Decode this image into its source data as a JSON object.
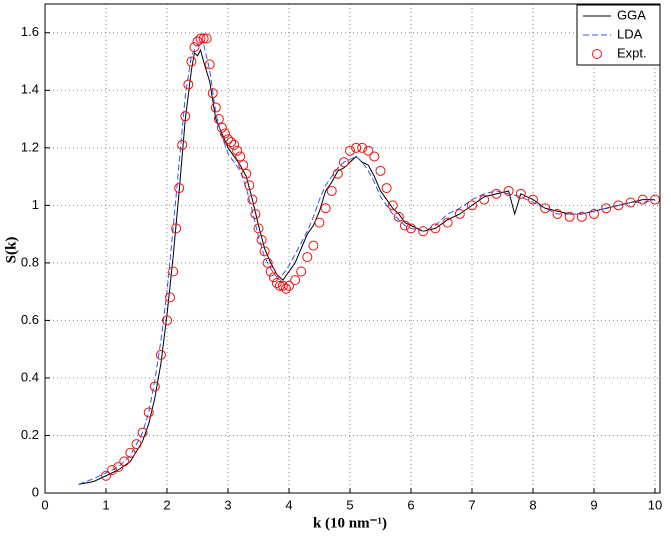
{
  "chart_data": {
    "type": "line",
    "x_label": "k (10 nm⁻¹)",
    "y_label": "S(k)",
    "xlim": [
      0,
      10
    ],
    "xticks": [
      0,
      1,
      2,
      3,
      4,
      5,
      6,
      7,
      8,
      9,
      10
    ],
    "ylim": [
      0,
      1.7
    ],
    "yticks": [
      0,
      0.2,
      0.4,
      0.6,
      0.8,
      1,
      1.2,
      1.4,
      1.6
    ],
    "grid": true,
    "legend": "upper right",
    "series": [
      {
        "name": "GGA",
        "color": "#000000",
        "style": "solid",
        "x": [
          0.55,
          0.8,
          1.0,
          1.2,
          1.4,
          1.6,
          1.7,
          1.8,
          1.9,
          2.0,
          2.1,
          2.2,
          2.3,
          2.4,
          2.45,
          2.5,
          2.55,
          2.6,
          2.7,
          2.8,
          2.9,
          3.0,
          3.1,
          3.2,
          3.3,
          3.4,
          3.5,
          3.6,
          3.7,
          3.8,
          3.9,
          4.0,
          4.1,
          4.2,
          4.3,
          4.4,
          4.5,
          4.6,
          4.7,
          4.8,
          4.9,
          5.0,
          5.1,
          5.2,
          5.3,
          5.4,
          5.5,
          5.6,
          5.7,
          5.8,
          5.9,
          6.0,
          6.2,
          6.4,
          6.6,
          6.8,
          7.0,
          7.2,
          7.4,
          7.6,
          7.7,
          7.8,
          8.0,
          8.2,
          8.4,
          8.6,
          8.8,
          9.0,
          9.2,
          9.4,
          9.6,
          9.8,
          10.0
        ],
        "values": [
          0.03,
          0.04,
          0.06,
          0.08,
          0.11,
          0.18,
          0.24,
          0.33,
          0.45,
          0.62,
          0.82,
          1.05,
          1.3,
          1.47,
          1.53,
          1.52,
          1.54,
          1.5,
          1.43,
          1.3,
          1.25,
          1.2,
          1.17,
          1.14,
          1.1,
          1.02,
          0.93,
          0.85,
          0.8,
          0.76,
          0.74,
          0.77,
          0.8,
          0.85,
          0.9,
          0.93,
          0.98,
          1.05,
          1.08,
          1.12,
          1.13,
          1.15,
          1.17,
          1.15,
          1.14,
          1.1,
          1.05,
          1.02,
          0.99,
          0.97,
          0.94,
          0.93,
          0.91,
          0.92,
          0.95,
          0.97,
          1.0,
          1.03,
          1.04,
          1.05,
          0.97,
          1.04,
          1.02,
          0.99,
          0.98,
          0.97,
          0.97,
          0.98,
          0.99,
          1.0,
          1.01,
          1.02,
          1.02
        ]
      },
      {
        "name": "LDA",
        "color": "#3355ee",
        "style": "dashed",
        "x": [
          0.55,
          0.8,
          1.0,
          1.2,
          1.4,
          1.6,
          1.7,
          1.8,
          1.9,
          2.0,
          2.1,
          2.2,
          2.3,
          2.4,
          2.5,
          2.6,
          2.7,
          2.8,
          2.9,
          3.0,
          3.1,
          3.2,
          3.3,
          3.4,
          3.5,
          3.6,
          3.7,
          3.8,
          3.9,
          4.0,
          4.1,
          4.2,
          4.3,
          4.4,
          4.5,
          4.6,
          4.7,
          4.8,
          4.9,
          5.0,
          5.1,
          5.2,
          5.3,
          5.4,
          5.5,
          5.6,
          5.7,
          5.8,
          5.9,
          6.0,
          6.2,
          6.4,
          6.6,
          6.8,
          7.0,
          7.2,
          7.4,
          7.6,
          7.8,
          8.0,
          8.2,
          8.4,
          8.6,
          8.8,
          9.0,
          9.2,
          9.4,
          9.6,
          9.8,
          10.0
        ],
        "values": [
          0.03,
          0.05,
          0.07,
          0.09,
          0.13,
          0.21,
          0.28,
          0.39,
          0.53,
          0.7,
          0.92,
          1.15,
          1.38,
          1.52,
          1.56,
          1.56,
          1.47,
          1.32,
          1.24,
          1.18,
          1.15,
          1.12,
          1.06,
          0.98,
          0.89,
          0.82,
          0.78,
          0.75,
          0.76,
          0.79,
          0.83,
          0.87,
          0.91,
          0.96,
          1.02,
          1.07,
          1.1,
          1.13,
          1.15,
          1.16,
          1.17,
          1.15,
          1.12,
          1.08,
          1.03,
          1.0,
          0.97,
          0.95,
          0.93,
          0.92,
          0.91,
          0.93,
          0.97,
          0.99,
          1.02,
          1.04,
          1.05,
          1.04,
          1.03,
          1.01,
          0.99,
          0.97,
          0.97,
          0.97,
          0.98,
          0.99,
          1.0,
          1.01,
          1.01,
          1.02
        ]
      },
      {
        "name": "Expt.",
        "color": "#ee1111",
        "style": "circle",
        "x": [
          1.0,
          1.1,
          1.2,
          1.3,
          1.4,
          1.5,
          1.6,
          1.7,
          1.8,
          1.9,
          2.0,
          2.05,
          2.1,
          2.15,
          2.2,
          2.25,
          2.3,
          2.35,
          2.4,
          2.45,
          2.5,
          2.55,
          2.6,
          2.65,
          2.7,
          2.75,
          2.8,
          2.85,
          2.9,
          2.95,
          3.0,
          3.05,
          3.1,
          3.15,
          3.2,
          3.25,
          3.3,
          3.35,
          3.4,
          3.45,
          3.5,
          3.55,
          3.6,
          3.65,
          3.7,
          3.75,
          3.8,
          3.85,
          3.9,
          3.95,
          4.0,
          4.1,
          4.2,
          4.3,
          4.4,
          4.5,
          4.6,
          4.7,
          4.8,
          4.9,
          5.0,
          5.1,
          5.2,
          5.3,
          5.4,
          5.5,
          5.6,
          5.7,
          5.8,
          5.9,
          6.0,
          6.2,
          6.4,
          6.6,
          6.8,
          7.0,
          7.2,
          7.4,
          7.6,
          7.8,
          8.0,
          8.2,
          8.4,
          8.6,
          8.8,
          9.0,
          9.2,
          9.4,
          9.6,
          9.8,
          10.0
        ],
        "values": [
          0.06,
          0.08,
          0.09,
          0.11,
          0.14,
          0.17,
          0.21,
          0.28,
          0.37,
          0.48,
          0.6,
          0.68,
          0.77,
          0.92,
          1.06,
          1.21,
          1.31,
          1.42,
          1.5,
          1.55,
          1.57,
          1.58,
          1.58,
          1.58,
          1.49,
          1.39,
          1.34,
          1.3,
          1.27,
          1.25,
          1.23,
          1.22,
          1.21,
          1.19,
          1.17,
          1.14,
          1.11,
          1.07,
          1.02,
          0.97,
          0.92,
          0.88,
          0.84,
          0.8,
          0.77,
          0.75,
          0.73,
          0.72,
          0.72,
          0.71,
          0.72,
          0.74,
          0.77,
          0.82,
          0.86,
          0.94,
          0.99,
          1.05,
          1.11,
          1.15,
          1.19,
          1.2,
          1.2,
          1.19,
          1.17,
          1.12,
          1.06,
          1.0,
          0.96,
          0.93,
          0.92,
          0.91,
          0.92,
          0.94,
          0.97,
          1.0,
          1.02,
          1.04,
          1.05,
          1.04,
          1.02,
          0.99,
          0.97,
          0.96,
          0.96,
          0.97,
          0.99,
          1.0,
          1.01,
          1.02,
          1.02
        ]
      }
    ]
  }
}
